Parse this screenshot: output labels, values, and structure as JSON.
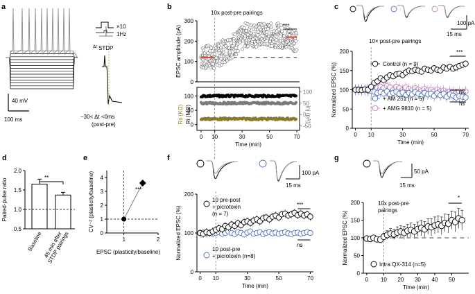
{
  "panels": {
    "a": {
      "letter": "a",
      "scale_voltage": "40 mV",
      "scale_time": "100 ms",
      "protocol_repeat": "×10",
      "protocol_rate": "1Hz",
      "protocol_name": "STDP",
      "protocol_name_prefix": "Δt",
      "timing_text": "−30< Δt <0ms",
      "timing_sub": "(post-pre)"
    },
    "b": {
      "letter": "b",
      "annotation": "10x post-pre pairings",
      "significance": "***",
      "inset_left_label_1": "Rs (KΩ)",
      "inset_left_label_2": "Ri (MΩ)",
      "inset_right_label": "Inj (pA)"
    },
    "c": {
      "letter": "c",
      "annotation": "10× post-pre pairings",
      "scale_current": "100 pA",
      "scale_time": "15 ms",
      "significance_top": "***",
      "ns_1": "ns",
      "ns_2": "ns"
    },
    "d": {
      "letter": "d",
      "significance": "**"
    },
    "e": {
      "letter": "e",
      "significance": "***"
    },
    "f": {
      "letter": "f",
      "scale_current": "100 pA",
      "scale_time": "15 ms",
      "legend_1_line1": "10 pre-post",
      "legend_1_line2": "+ picrotoxin",
      "legend_1_line3": "(n = 7)",
      "legend_2_line1": "10 post-pre",
      "legend_2_line2": "+ picrotoxin (n=8)",
      "significance": "***",
      "ns": "ns"
    },
    "g": {
      "letter": "g",
      "scale_current": "50 pA",
      "scale_time": "15 ms",
      "annotation_1": "10x post-pre",
      "annotation_2": "pairings",
      "legend": "Intra QX-314 (n=5)",
      "significance": "*"
    }
  },
  "colors": {
    "black": "#000000",
    "grey": "#7a7a7a",
    "blue": "#4f6fb8",
    "pink": "#c67fc0",
    "olive": "#8a7a2a",
    "red": "#d43a2a"
  },
  "chart_data": [
    {
      "id": "b-main",
      "type": "scatter",
      "title": "",
      "xlabel": "Time (min)",
      "ylabel": "EPSC amplitude (pA)",
      "xlim": [
        -3,
        72
      ],
      "ylim": [
        0,
        300
      ],
      "x_ticks": [
        0,
        10,
        30,
        50,
        70
      ],
      "y_ticks": [
        0,
        100,
        200,
        300
      ],
      "baseline_mean": 120,
      "post_mean": 220,
      "pairing_time": 10,
      "series": [
        {
          "name": "EPSC amplitude",
          "x_range": [
            0,
            70
          ],
          "n_points": 420
        }
      ]
    },
    {
      "id": "b-inset",
      "type": "scatter",
      "xlabel": "Time (min)",
      "left_axis_ticks": [
        0,
        50,
        100
      ],
      "right_axis_ticks": [
        -50,
        0,
        50,
        100
      ],
      "x_ticks": [
        0,
        10,
        30,
        50,
        70
      ],
      "series": [
        {
          "name": "Ri (MΩ)",
          "value": 100
        },
        {
          "name": "Inj (pA)",
          "value": 50
        },
        {
          "name": "Rs (KΩ)",
          "value": 20
        }
      ]
    },
    {
      "id": "c",
      "type": "scatter",
      "xlabel": "Time (min)",
      "ylabel": "Normalized EPSC (%)",
      "xlim": [
        -2,
        72
      ],
      "ylim": [
        0,
        200
      ],
      "x_ticks": [
        0,
        10,
        30,
        50,
        70
      ],
      "y_ticks": [
        0,
        50,
        100,
        150,
        200
      ],
      "series": [
        {
          "name": "Control",
          "n_label": "(n = 9)",
          "x": [
            0,
            2,
            4,
            6,
            8,
            10,
            12,
            14,
            16,
            18,
            20,
            22,
            24,
            26,
            28,
            30,
            32,
            34,
            36,
            38,
            40,
            42,
            44,
            46,
            48,
            50,
            52,
            54,
            56,
            58,
            60,
            62,
            64,
            66,
            68,
            70
          ],
          "y": [
            100,
            100,
            99,
            101,
            100,
            108,
            118,
            122,
            130,
            125,
            132,
            138,
            135,
            140,
            142,
            138,
            145,
            150,
            148,
            152,
            150,
            147,
            155,
            152,
            150,
            156,
            152,
            150,
            158,
            155,
            160,
            155,
            158,
            162,
            165,
            168
          ]
        },
        {
          "name": "+ AM 251",
          "n_label": "(n = 5)",
          "x": [
            0,
            2,
            4,
            6,
            8,
            10,
            12,
            14,
            16,
            18,
            20,
            22,
            24,
            26,
            28,
            30,
            32,
            34,
            36,
            38,
            40,
            42,
            44,
            46,
            48,
            50,
            52,
            54,
            56,
            58,
            60,
            62,
            64,
            66,
            68,
            70
          ],
          "y": [
            100,
            101,
            99,
            100,
            98,
            97,
            95,
            92,
            94,
            90,
            96,
            88,
            92,
            95,
            90,
            93,
            86,
            92,
            88,
            94,
            90,
            85,
            92,
            88,
            90,
            84,
            91,
            86,
            90,
            82,
            88,
            85,
            80,
            84,
            82,
            80
          ]
        },
        {
          "name": "+ AMG 9810",
          "n_label": "(n = 5)",
          "x": [
            0,
            2,
            4,
            6,
            8,
            10,
            12,
            14,
            16,
            18,
            20,
            22,
            24,
            26,
            28,
            30,
            32,
            34,
            36,
            38,
            40,
            42,
            44,
            46,
            48,
            50,
            52,
            54,
            56,
            58,
            60,
            62,
            64,
            66,
            68,
            70
          ],
          "y": [
            100,
            99,
            101,
            100,
            102,
            104,
            106,
            105,
            108,
            104,
            110,
            106,
            100,
            108,
            104,
            100,
            106,
            102,
            98,
            104,
            100,
            96,
            102,
            98,
            100,
            95,
            100,
            96,
            98,
            92,
            96,
            94,
            90,
            95,
            92,
            96
          ]
        }
      ]
    },
    {
      "id": "d",
      "type": "bar",
      "ylabel": "Paired-pulse ratio",
      "categories": [
        "Baseline",
        "45 min after STDP pairings"
      ],
      "values": [
        1.65,
        1.37
      ],
      "errors": [
        0.13,
        0.07
      ],
      "ylim": [
        0.5,
        2.0
      ],
      "y_ticks": [
        0.5,
        1.0,
        1.5,
        2.0
      ],
      "reference_line": 1.0
    },
    {
      "id": "e",
      "type": "scatter",
      "ylabel": "CV⁻² (plasticity/baseline)",
      "xlabel": "EPSC (plasticity/baseline)",
      "xlim": [
        0.5,
        2.0
      ],
      "ylim": [
        0,
        4.5
      ],
      "x_ticks": [
        1,
        2
      ],
      "y_ticks": [
        0,
        1,
        2,
        3,
        4
      ],
      "reference_x": 1,
      "reference_y": 1,
      "points": [
        {
          "x": 1.0,
          "y": 1.0
        },
        {
          "x": 1.55,
          "y": 3.6,
          "xerr": 0.05,
          "yerr": 0.2
        }
      ]
    },
    {
      "id": "f",
      "type": "scatter",
      "xlabel": "Time (min)",
      "ylabel": "Normalized EPSC (%)",
      "xlim": [
        -2,
        72
      ],
      "ylim": [
        0,
        200
      ],
      "x_ticks": [
        0,
        10,
        30,
        50,
        70
      ],
      "y_ticks": [
        0,
        100,
        200
      ],
      "series": [
        {
          "name": "10 pre-post + picrotoxin",
          "x": [
            0,
            2,
            4,
            6,
            8,
            10,
            12,
            14,
            16,
            18,
            20,
            22,
            24,
            26,
            28,
            30,
            32,
            34,
            36,
            38,
            40,
            42,
            44,
            46,
            48,
            50,
            52,
            54,
            56,
            58,
            60,
            62,
            64,
            66,
            68,
            70
          ],
          "y": [
            100,
            98,
            102,
            100,
            104,
            108,
            112,
            110,
            118,
            115,
            122,
            118,
            125,
            120,
            128,
            130,
            126,
            132,
            135,
            130,
            138,
            140,
            135,
            142,
            145,
            140,
            148,
            150,
            145,
            148,
            152,
            146,
            150,
            145,
            148,
            142
          ]
        },
        {
          "name": "10 post-pre + picrotoxin",
          "x": [
            0,
            2,
            4,
            6,
            8,
            10,
            12,
            14,
            16,
            18,
            20,
            22,
            24,
            26,
            28,
            30,
            32,
            34,
            36,
            38,
            40,
            42,
            44,
            46,
            48,
            50,
            52,
            54,
            56,
            58,
            60,
            62,
            64,
            66,
            68,
            70
          ],
          "y": [
            100,
            101,
            99,
            100,
            98,
            100,
            102,
            98,
            100,
            104,
            100,
            97,
            102,
            100,
            96,
            101,
            104,
            98,
            100,
            102,
            97,
            100,
            103,
            99,
            101,
            98,
            100,
            102,
            99,
            97,
            100,
            101,
            98,
            100,
            102,
            100
          ]
        }
      ]
    },
    {
      "id": "g",
      "type": "scatter",
      "xlabel": "Time (min)",
      "ylabel": "Normalized EPSC (%)",
      "xlim": [
        -2,
        60
      ],
      "ylim": [
        0,
        200
      ],
      "x_ticks": [
        0,
        10,
        20,
        30,
        40,
        50
      ],
      "y_ticks": [
        0,
        50,
        100,
        150,
        200
      ],
      "series": [
        {
          "name": "Intra QX-314 (n=5)",
          "x": [
            0,
            2,
            4,
            6,
            8,
            10,
            12,
            14,
            16,
            18,
            20,
            22,
            24,
            26,
            28,
            30,
            32,
            34,
            36,
            38,
            40,
            42,
            44,
            46,
            48,
            50,
            52,
            54,
            56
          ],
          "y": [
            98,
            97,
            100,
            96,
            95,
            103,
            108,
            112,
            110,
            115,
            118,
            114,
            120,
            122,
            118,
            125,
            128,
            124,
            132,
            130,
            135,
            138,
            134,
            142,
            140,
            150,
            145,
            155,
            150
          ],
          "err": [
            5,
            5,
            5,
            5,
            5,
            10,
            12,
            14,
            14,
            16,
            16,
            18,
            18,
            20,
            20,
            20,
            22,
            22,
            22,
            24,
            24,
            24,
            25,
            25,
            26,
            26,
            28,
            28,
            28
          ]
        }
      ]
    }
  ]
}
